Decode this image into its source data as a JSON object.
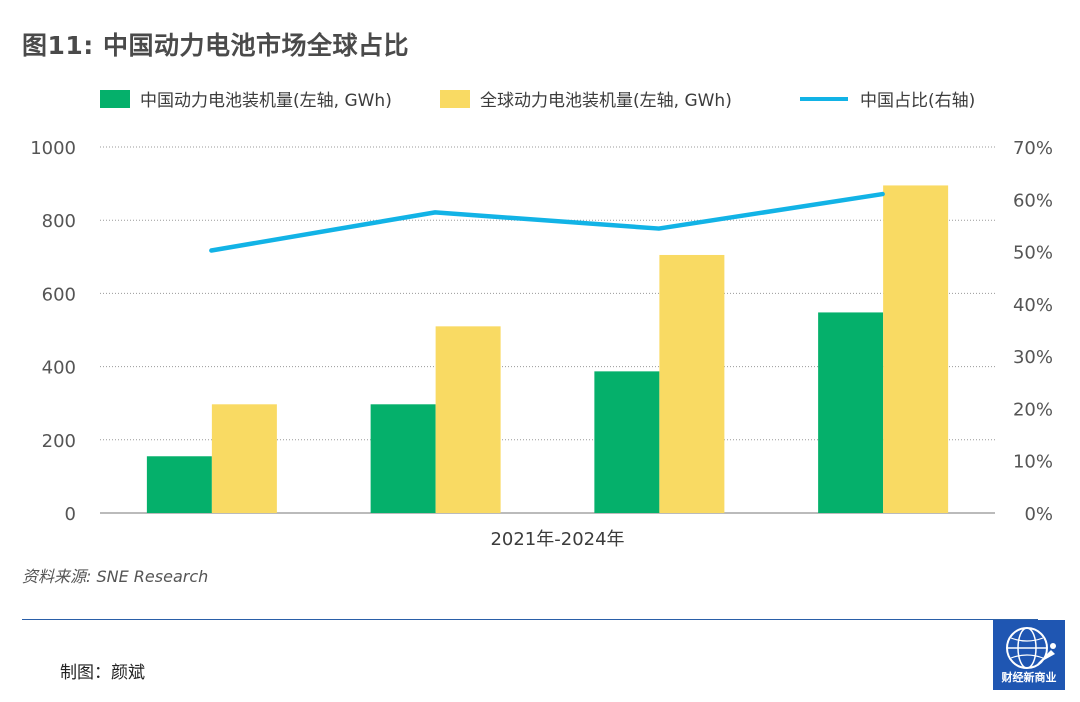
{
  "title": "图11: 中国动力电池市场全球占比",
  "colors": {
    "china_bar": "#05b06b",
    "global_bar": "#f9da63",
    "share_line": "#12b3e6",
    "grid": "#9a9a9a",
    "axis_text": "#555555"
  },
  "legend": {
    "china_bar": "中国动力电池装机量(左轴, GWh)",
    "global_bar": "全球动力电池装机量(左轴, GWh)",
    "share_line": "中国占比(右轴)"
  },
  "chart_data": {
    "type": "bar",
    "xlabel": "2021年-2024年",
    "categories": [
      "",
      "",
      "",
      ""
    ],
    "series": [
      {
        "name": "中国动力电池装机量(左轴, GWh)",
        "type": "bar",
        "axis": "left",
        "values": [
          155,
          297,
          387,
          548
        ]
      },
      {
        "name": "全球动力电池装机量(左轴, GWh)",
        "type": "bar",
        "axis": "left",
        "values": [
          297,
          510,
          705,
          895
        ]
      },
      {
        "name": "中国占比(右轴)",
        "type": "line",
        "axis": "right",
        "values": [
          50.2,
          57.5,
          54.4,
          61.0
        ]
      }
    ],
    "ylim": [
      0,
      1000
    ],
    "yticks": [
      0,
      200,
      400,
      600,
      800,
      1000
    ],
    "y2lim": [
      0,
      70
    ],
    "y2ticks": [
      "0%",
      "10%",
      "20%",
      "30%",
      "40%",
      "50%",
      "60%",
      "70%"
    ],
    "grid": true,
    "legend_position": "top"
  },
  "source": "资料来源: SNE Research",
  "credit": "制图：颜斌",
  "logo": {
    "text": "财经新商业",
    "icon": "globe-icon"
  }
}
